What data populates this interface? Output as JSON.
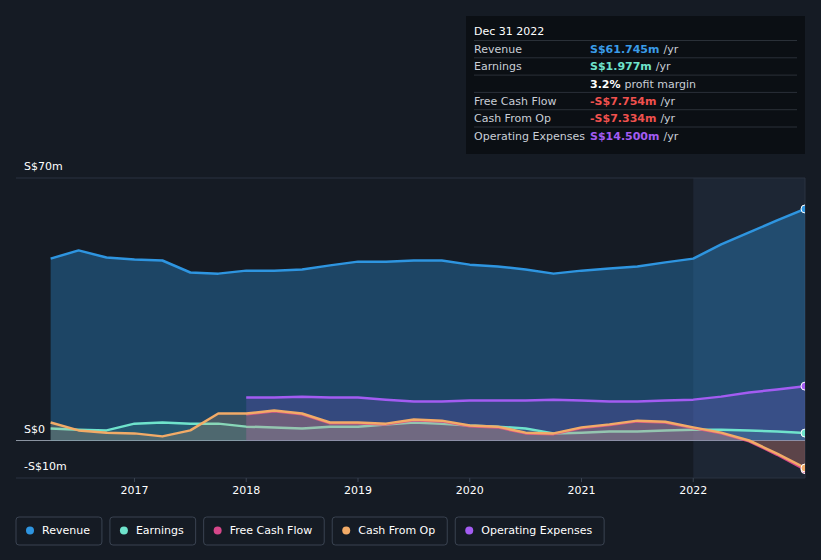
{
  "chart_data": {
    "type": "line",
    "x": [
      2016.25,
      2016.5,
      2016.75,
      2017.0,
      2017.25,
      2017.5,
      2017.75,
      2018.0,
      2018.25,
      2018.5,
      2018.75,
      2019.0,
      2019.25,
      2019.5,
      2019.75,
      2020.0,
      2020.25,
      2020.5,
      2020.75,
      2021.0,
      2021.25,
      2021.5,
      2021.75,
      2022.0,
      2022.25,
      2022.5,
      2022.75,
      2023.0
    ],
    "xlim": [
      2015.94,
      2023.0
    ],
    "xticks": [
      2017,
      2018,
      2019,
      2020,
      2021,
      2022
    ],
    "ylim": [
      -10,
      70
    ],
    "yticks": [
      {
        "value": -10,
        "label": "-S$10m"
      },
      {
        "value": 0,
        "label": "S$0"
      },
      {
        "value": 70,
        "label": "S$70m"
      }
    ],
    "grid": true,
    "legend": "bottom-left",
    "series": [
      {
        "name": "Revenue",
        "color": "#2e95e0",
        "values": [
          48.5,
          50.7,
          48.8,
          48.3,
          48.0,
          44.8,
          44.5,
          45.3,
          45.3,
          45.6,
          46.7,
          47.7,
          47.7,
          48.0,
          48.0,
          46.9,
          46.4,
          45.6,
          44.5,
          45.3,
          45.9,
          46.4,
          47.5,
          48.5,
          52.3,
          55.5,
          58.7,
          61.745
        ]
      },
      {
        "name": "Earnings",
        "color": "#6fe3cc",
        "values": [
          3.2,
          2.9,
          2.7,
          4.5,
          4.8,
          4.5,
          4.5,
          3.7,
          3.5,
          3.2,
          3.7,
          3.7,
          4.3,
          4.8,
          4.5,
          4.0,
          3.7,
          3.2,
          1.9,
          2.1,
          2.4,
          2.4,
          2.7,
          2.9,
          2.9,
          2.7,
          2.4,
          1.977
        ]
      },
      {
        "name": "Free Cash Flow",
        "color": "#d6478a",
        "values": [
          null,
          null,
          null,
          null,
          null,
          null,
          null,
          7.0,
          7.8,
          7.0,
          4.6,
          4.6,
          4.3,
          5.4,
          5.1,
          3.8,
          3.5,
          1.9,
          1.7,
          3.3,
          4.1,
          5.1,
          4.8,
          3.3,
          1.9,
          -0.2,
          -3.8,
          -7.754
        ]
      },
      {
        "name": "Cash From Op",
        "color": "#f2ab67",
        "values": [
          4.8,
          2.7,
          2.1,
          1.9,
          1.1,
          2.7,
          7.2,
          7.2,
          8.0,
          7.2,
          4.8,
          4.8,
          4.5,
          5.6,
          5.3,
          4.0,
          3.7,
          2.1,
          1.9,
          3.5,
          4.3,
          5.3,
          5.0,
          3.5,
          2.1,
          0.0,
          -3.5,
          -7.334
        ]
      },
      {
        "name": "Operating Expenses",
        "color": "#a35cf2",
        "values": [
          null,
          null,
          null,
          null,
          null,
          null,
          null,
          11.5,
          11.5,
          11.7,
          11.5,
          11.5,
          10.9,
          10.4,
          10.4,
          10.7,
          10.7,
          10.7,
          10.9,
          10.7,
          10.4,
          10.4,
          10.7,
          10.9,
          11.7,
          12.8,
          13.6,
          14.5
        ]
      }
    ],
    "tooltip": {
      "date": "Dec 31 2022",
      "rows": [
        {
          "label": "Revenue",
          "value": "S$61.745m",
          "unit": "/yr",
          "color": "#3a9ce8"
        },
        {
          "label": "Earnings",
          "value": "S$1.977m",
          "unit": "/yr",
          "color": "#6fe3cc"
        },
        {
          "label": "3.2%",
          "value": "profit margin",
          "color": "#ffffff"
        },
        {
          "label": "Free Cash Flow",
          "value": "-S$7.754m",
          "unit": "/yr",
          "color": "#f0514e"
        },
        {
          "label": "Cash From Op",
          "value": "-S$7.334m",
          "unit": "/yr",
          "color": "#f0514e"
        },
        {
          "label": "Operating Expenses",
          "value": "S$14.500m",
          "unit": "/yr",
          "color": "#a35cf2"
        }
      ]
    }
  }
}
